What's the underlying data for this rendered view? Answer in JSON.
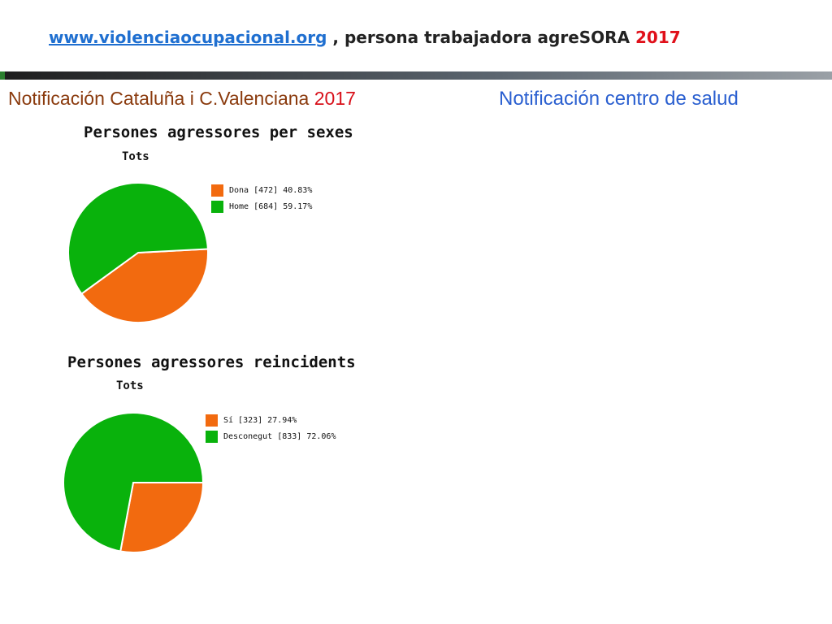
{
  "header": {
    "link": "www.violenciaocupacional.org",
    "text": " , persona trabajadora agreSORA ",
    "year": "2017"
  },
  "left_title": {
    "text": "Notificación Cataluña i C.Valenciana ",
    "year": "2017"
  },
  "right_title": {
    "text": "Notificación centro de salud"
  },
  "colors": {
    "orange": "#f26a0f",
    "green": "#09b20c"
  },
  "chart_data": [
    {
      "type": "pie",
      "title": "Persones agressores per sexes",
      "subtitle": "Tots",
      "slices": [
        {
          "label": "Dona [472] 40.83%",
          "name": "Dona",
          "count": 472,
          "percent": 40.83,
          "color": "#f26a0f"
        },
        {
          "label": "Home [684] 59.17%",
          "name": "Home",
          "count": 684,
          "percent": 59.17,
          "color": "#09b20c"
        }
      ],
      "legend_position": "top-right"
    },
    {
      "type": "pie",
      "title": "Persones agressores reincidents",
      "subtitle": "Tots",
      "slices": [
        {
          "label": "Sí [323] 27.94%",
          "name": "Sí",
          "count": 323,
          "percent": 27.94,
          "color": "#f26a0f"
        },
        {
          "label": "Desconegut [833] 72.06%",
          "name": "Desconegut",
          "count": 833,
          "percent": 72.06,
          "color": "#09b20c"
        }
      ],
      "legend_position": "top-right"
    }
  ]
}
